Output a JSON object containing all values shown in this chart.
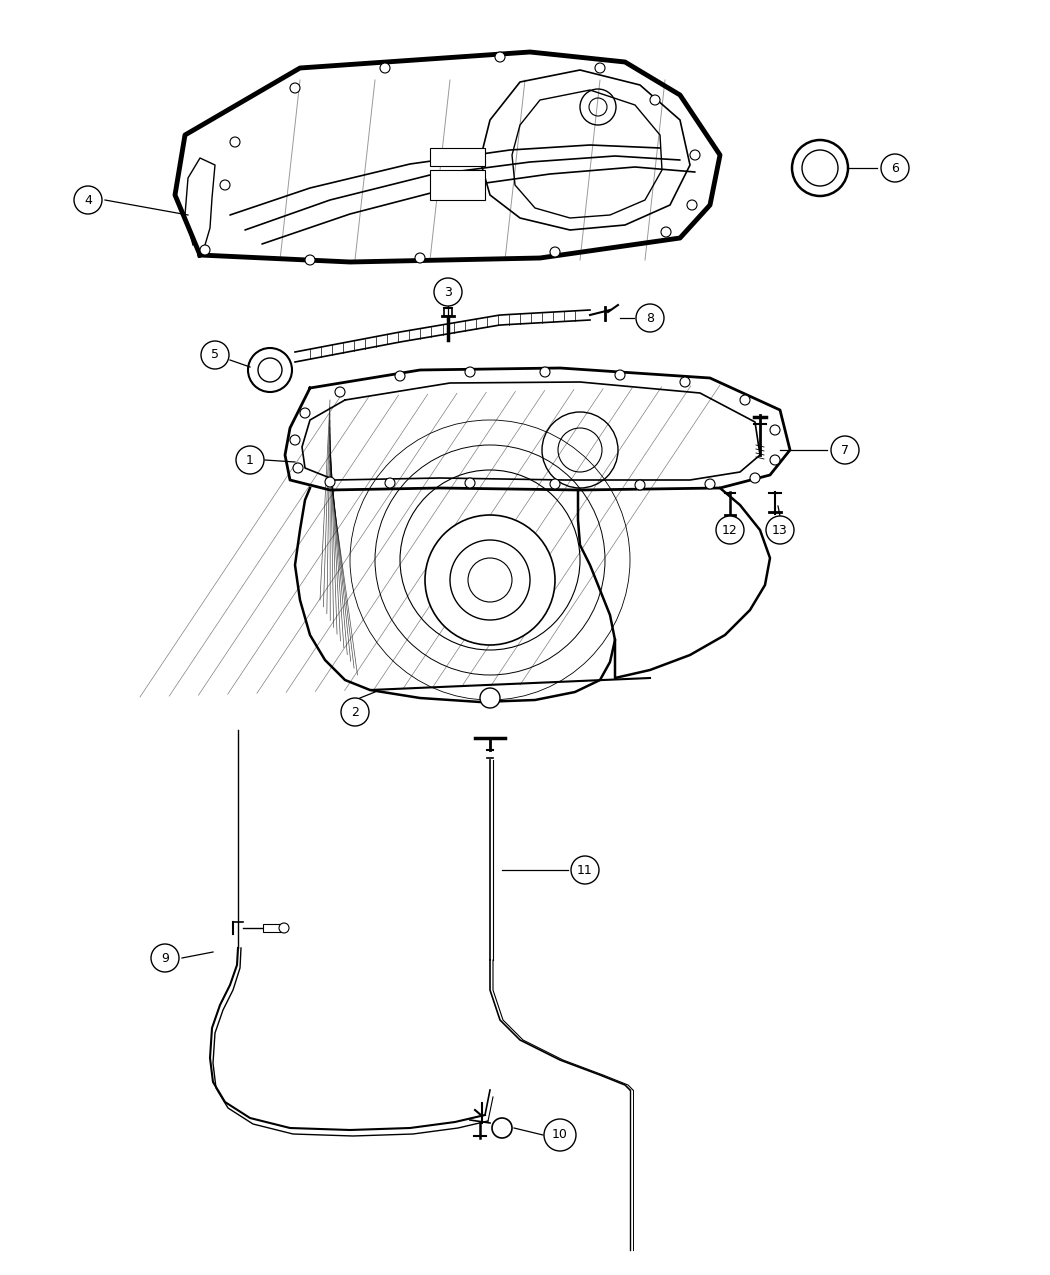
{
  "bg_color": "#ffffff",
  "line_color": "#000000",
  "fig_width": 10.5,
  "fig_height": 12.75,
  "dpi": 100
}
